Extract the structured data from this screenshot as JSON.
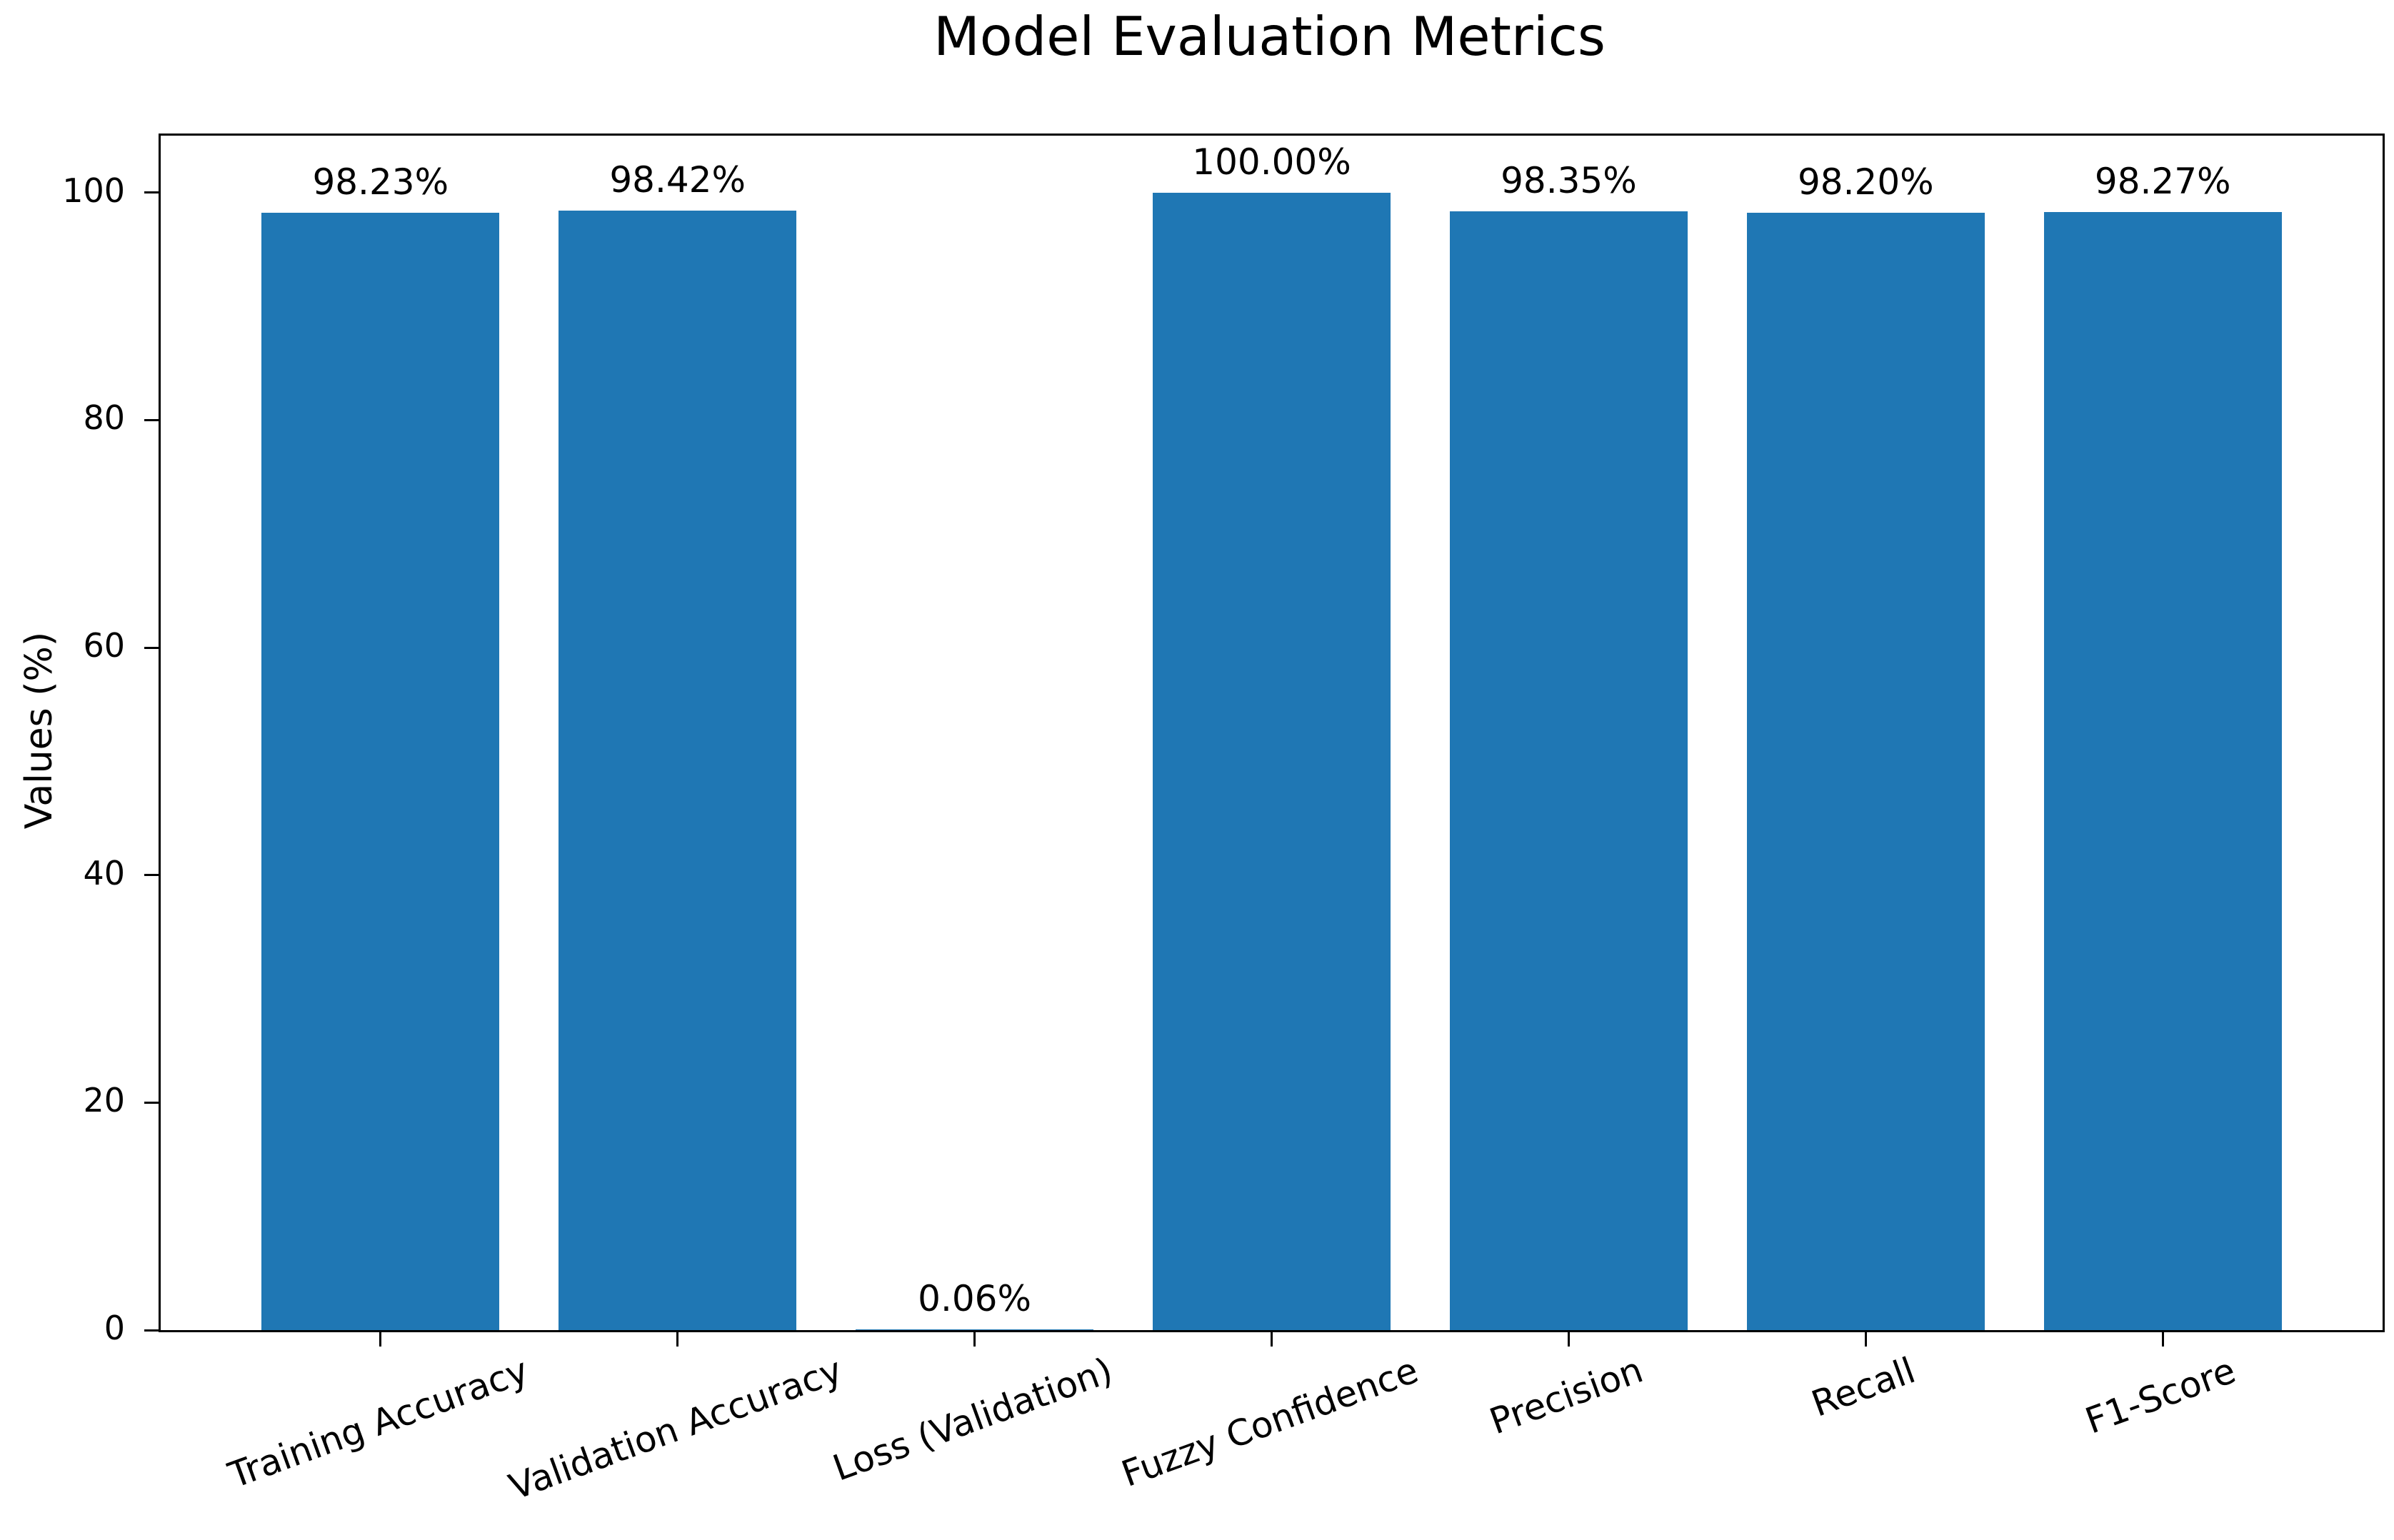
{
  "figure": {
    "background": "#ffffff"
  },
  "chart_data": {
    "type": "bar",
    "title": "Model Evaluation Metrics",
    "xlabel": "",
    "ylabel": "Values (%)",
    "categories": [
      "Training Accuracy",
      "Validation Accuracy",
      "Loss (Validation)",
      "Fuzzy Confidence",
      "Precision",
      "Recall",
      "F1-Score"
    ],
    "values": [
      98.23,
      98.42,
      0.06,
      100.0,
      98.35,
      98.2,
      98.27
    ],
    "bar_value_labels": [
      "98.23%",
      "98.42%",
      "0.06%",
      "100.00%",
      "98.35%",
      "98.20%",
      "98.27%"
    ],
    "bar_color": "#1f77b4",
    "axis_color": "#000000",
    "text_color": "#000000",
    "ylim": [
      0,
      105
    ],
    "yticks": [
      0,
      20,
      40,
      60,
      80,
      100
    ],
    "ytick_labels": [
      "0",
      "20",
      "40",
      "60",
      "80",
      "100"
    ],
    "x_tick_rotation_deg": 20,
    "grid": false,
    "legend": "none"
  }
}
